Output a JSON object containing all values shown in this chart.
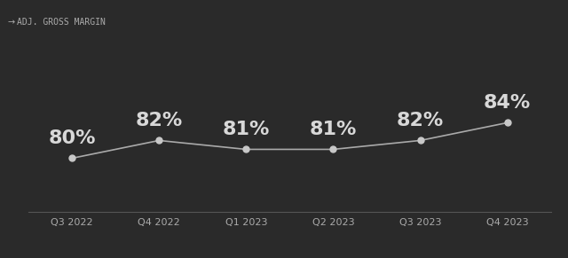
{
  "categories": [
    "Q3 2022",
    "Q4 2022",
    "Q1 2023",
    "Q2 2023",
    "Q3 2023",
    "Q4 2023"
  ],
  "values": [
    80,
    82,
    81,
    81,
    82,
    84
  ],
  "labels": [
    "80%",
    "82%",
    "81%",
    "81%",
    "82%",
    "84%"
  ],
  "line_color": "#aaaaaa",
  "marker_color": "#cccccc",
  "marker_face_color": "#c8c8c8",
  "background_color": "#2a2a2a",
  "text_color": "#d8d8d8",
  "legend_label": "ADJ. GROSS MARGIN",
  "legend_color": "#aaaaaa",
  "label_fontsize": 16,
  "tick_fontsize": 8,
  "legend_fontsize": 7,
  "ylim": [
    74,
    92
  ],
  "line_width": 1.2,
  "marker_size": 5
}
